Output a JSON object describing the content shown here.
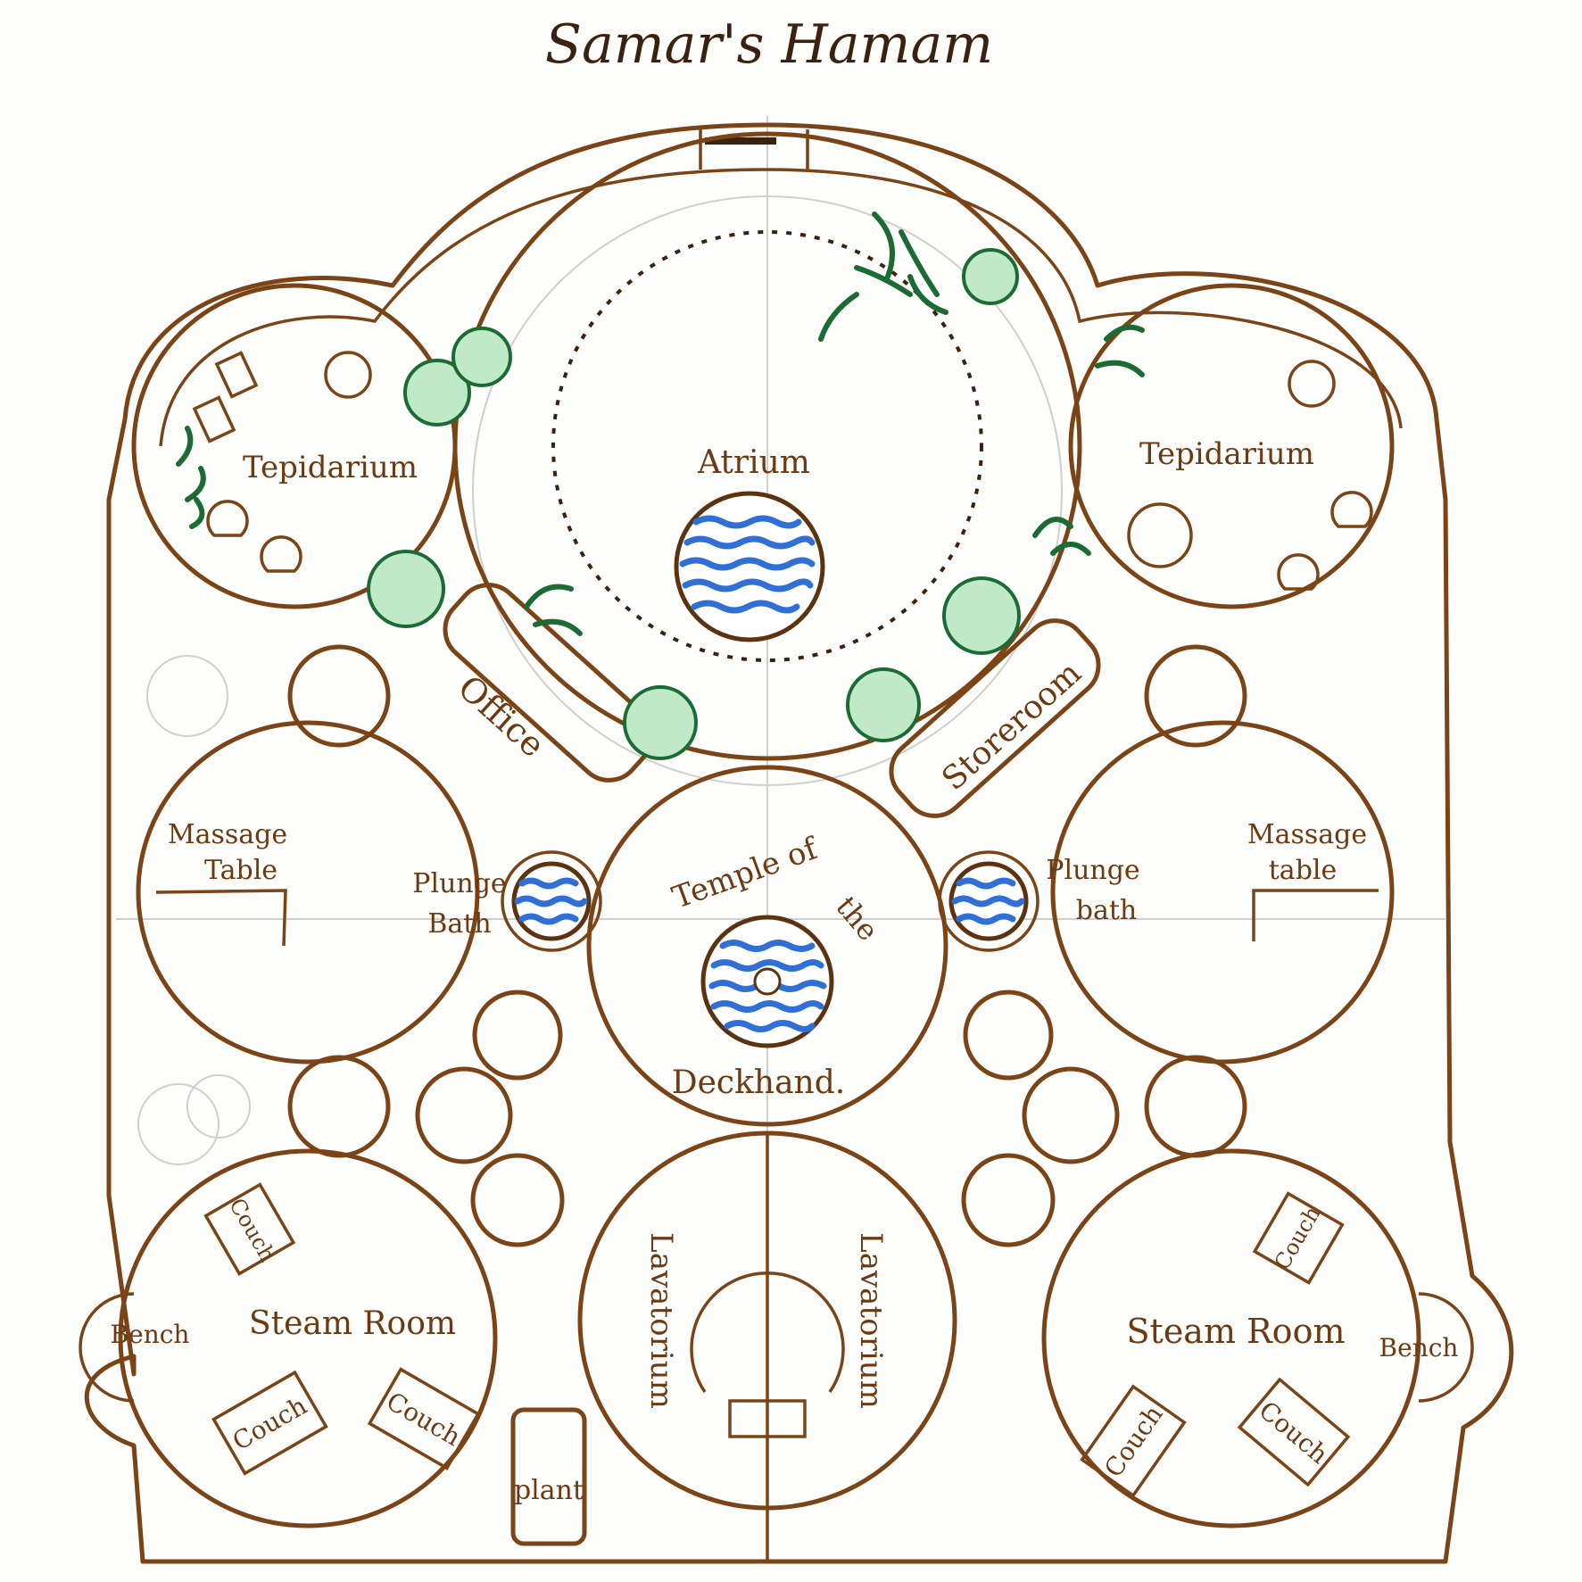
{
  "title": "Samar's Hamam",
  "rooms": {
    "atrium": "Atrium",
    "tepidarium_left": "Tepidarium",
    "tepidarium_right": "Tepidarium",
    "office": "Office",
    "storeroom": "Storeroom",
    "massage_left_line1": "Massage",
    "massage_left_line2": "Table",
    "massage_right_line1": "Massage",
    "massage_right_line2": "table",
    "plunge_left_line1": "Plunge",
    "plunge_left_line2": "Bath",
    "plunge_right_line1": "Plunge",
    "plunge_right_line2": "bath",
    "temple_line1": "Temple of",
    "temple_line2": "the",
    "temple_line3": "Deckhand.",
    "steam_left": "Steam Room",
    "steam_right": "Steam Room",
    "lavatorium_left": "Lavatorium",
    "lavatorium_right": "Lavatorium",
    "bench_left": "Bench",
    "bench_right": "Bench",
    "plant": "plant",
    "couch": "Couch"
  },
  "colors": {
    "wall": "#7a4416",
    "water": "#2f6fd6",
    "foliage_dark": "#1d6b34",
    "foliage_light": "#bfe9c7"
  }
}
